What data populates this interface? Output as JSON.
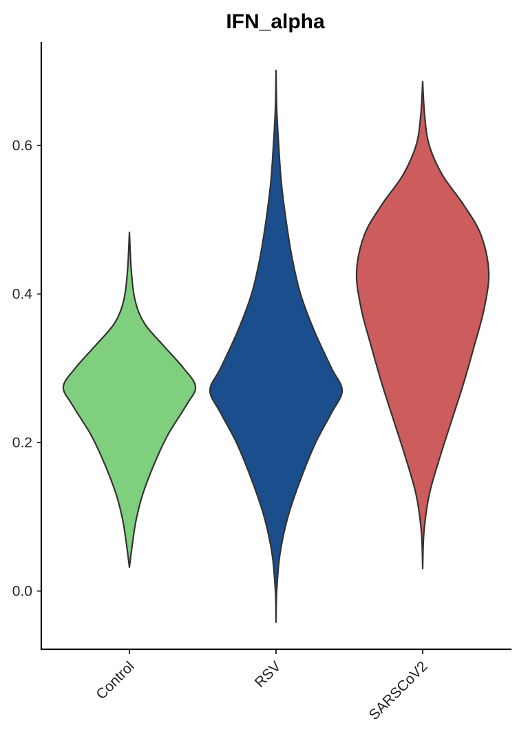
{
  "chart_data": {
    "type": "violin",
    "title": "IFN_alpha",
    "xlabel": "",
    "ylabel": "",
    "ylim": [
      -0.08,
      0.74
    ],
    "yticks": [
      0.0,
      0.2,
      0.4,
      0.6
    ],
    "ytick_labels": [
      "0.0",
      "0.2",
      "0.4",
      "0.6"
    ],
    "categories": [
      "Control",
      "RSV",
      "SARSCoV2"
    ],
    "grid": false,
    "legend": "none",
    "series": [
      {
        "category": "Control",
        "color": "#7FCF7F",
        "min": 0.032,
        "max": 0.483,
        "profile": [
          {
            "y": 0.032,
            "w": 0.0
          },
          {
            "y": 0.06,
            "w": 0.04
          },
          {
            "y": 0.095,
            "w": 0.1
          },
          {
            "y": 0.13,
            "w": 0.2
          },
          {
            "y": 0.17,
            "w": 0.37
          },
          {
            "y": 0.21,
            "w": 0.58
          },
          {
            "y": 0.25,
            "w": 0.86
          },
          {
            "y": 0.275,
            "w": 1.0
          },
          {
            "y": 0.3,
            "w": 0.82
          },
          {
            "y": 0.33,
            "w": 0.52
          },
          {
            "y": 0.36,
            "w": 0.23
          },
          {
            "y": 0.39,
            "w": 0.09
          },
          {
            "y": 0.43,
            "w": 0.03
          },
          {
            "y": 0.483,
            "w": 0.0
          }
        ]
      },
      {
        "category": "RSV",
        "color": "#1B4E8C",
        "min": -0.042,
        "max": 0.701,
        "profile": [
          {
            "y": -0.042,
            "w": 0.0
          },
          {
            "y": 0.0,
            "w": 0.01
          },
          {
            "y": 0.05,
            "w": 0.06
          },
          {
            "y": 0.1,
            "w": 0.18
          },
          {
            "y": 0.15,
            "w": 0.37
          },
          {
            "y": 0.2,
            "w": 0.6
          },
          {
            "y": 0.24,
            "w": 0.84
          },
          {
            "y": 0.27,
            "w": 1.0
          },
          {
            "y": 0.3,
            "w": 0.84
          },
          {
            "y": 0.35,
            "w": 0.58
          },
          {
            "y": 0.4,
            "w": 0.37
          },
          {
            "y": 0.45,
            "w": 0.24
          },
          {
            "y": 0.5,
            "w": 0.15
          },
          {
            "y": 0.55,
            "w": 0.08
          },
          {
            "y": 0.6,
            "w": 0.04
          },
          {
            "y": 0.65,
            "w": 0.01
          },
          {
            "y": 0.701,
            "w": 0.0
          }
        ]
      },
      {
        "category": "SARSCoV2",
        "color": "#CD5C5C",
        "min": 0.03,
        "max": 0.686,
        "profile": [
          {
            "y": 0.03,
            "w": 0.0
          },
          {
            "y": 0.08,
            "w": 0.02
          },
          {
            "y": 0.13,
            "w": 0.1
          },
          {
            "y": 0.18,
            "w": 0.26
          },
          {
            "y": 0.23,
            "w": 0.44
          },
          {
            "y": 0.28,
            "w": 0.62
          },
          {
            "y": 0.33,
            "w": 0.78
          },
          {
            "y": 0.38,
            "w": 0.93
          },
          {
            "y": 0.43,
            "w": 1.0
          },
          {
            "y": 0.48,
            "w": 0.88
          },
          {
            "y": 0.52,
            "w": 0.62
          },
          {
            "y": 0.56,
            "w": 0.3
          },
          {
            "y": 0.6,
            "w": 0.1
          },
          {
            "y": 0.64,
            "w": 0.03
          },
          {
            "y": 0.686,
            "w": 0.0
          }
        ]
      }
    ]
  }
}
